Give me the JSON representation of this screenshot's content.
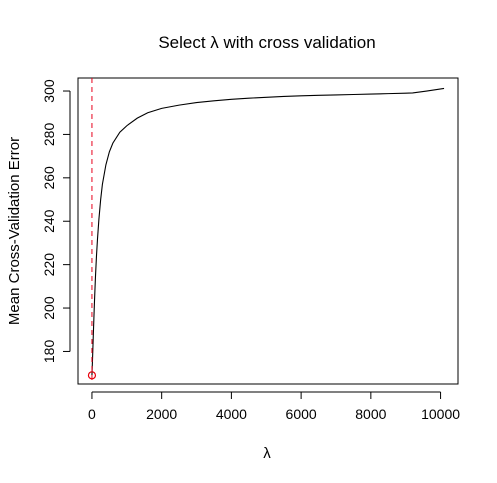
{
  "chart_data": {
    "type": "line",
    "title": "Select λ with cross validation",
    "xlabel": "λ",
    "ylabel": "Mean Cross-Validation Error",
    "xlim": [
      -400,
      10500
    ],
    "ylim": [
      165,
      306
    ],
    "x_ticks": [
      0,
      2000,
      4000,
      6000,
      8000,
      10000
    ],
    "y_ticks": [
      180,
      200,
      220,
      240,
      260,
      280,
      300
    ],
    "grid": false,
    "legend": "none",
    "line_color": "#000000",
    "min_marker_color": "#e8000b",
    "vline_color": "#e8001b",
    "series": [
      {
        "x": [
          0,
          20,
          40,
          70,
          100,
          130,
          160,
          200,
          250,
          300,
          400,
          500,
          600,
          800,
          1000,
          1300,
          1600,
          2000,
          2500,
          3000,
          3500,
          4000,
          4500,
          5000,
          5500,
          6000,
          6500,
          7000,
          7500,
          8000,
          8500,
          9000,
          9200,
          9600,
          10100
        ],
        "y": [
          169,
          178,
          188,
          202,
          214,
          224,
          232,
          241,
          250,
          257,
          266,
          272,
          276,
          281,
          284,
          287.5,
          290,
          292,
          293.5,
          294.7,
          295.5,
          296.2,
          296.7,
          297.1,
          297.5,
          297.8,
          298,
          298.2,
          298.4,
          298.6,
          298.8,
          299,
          299.1,
          300,
          301.2
        ]
      }
    ],
    "min_point": {
      "x": 0,
      "y": 169
    },
    "vline_x": 0
  }
}
